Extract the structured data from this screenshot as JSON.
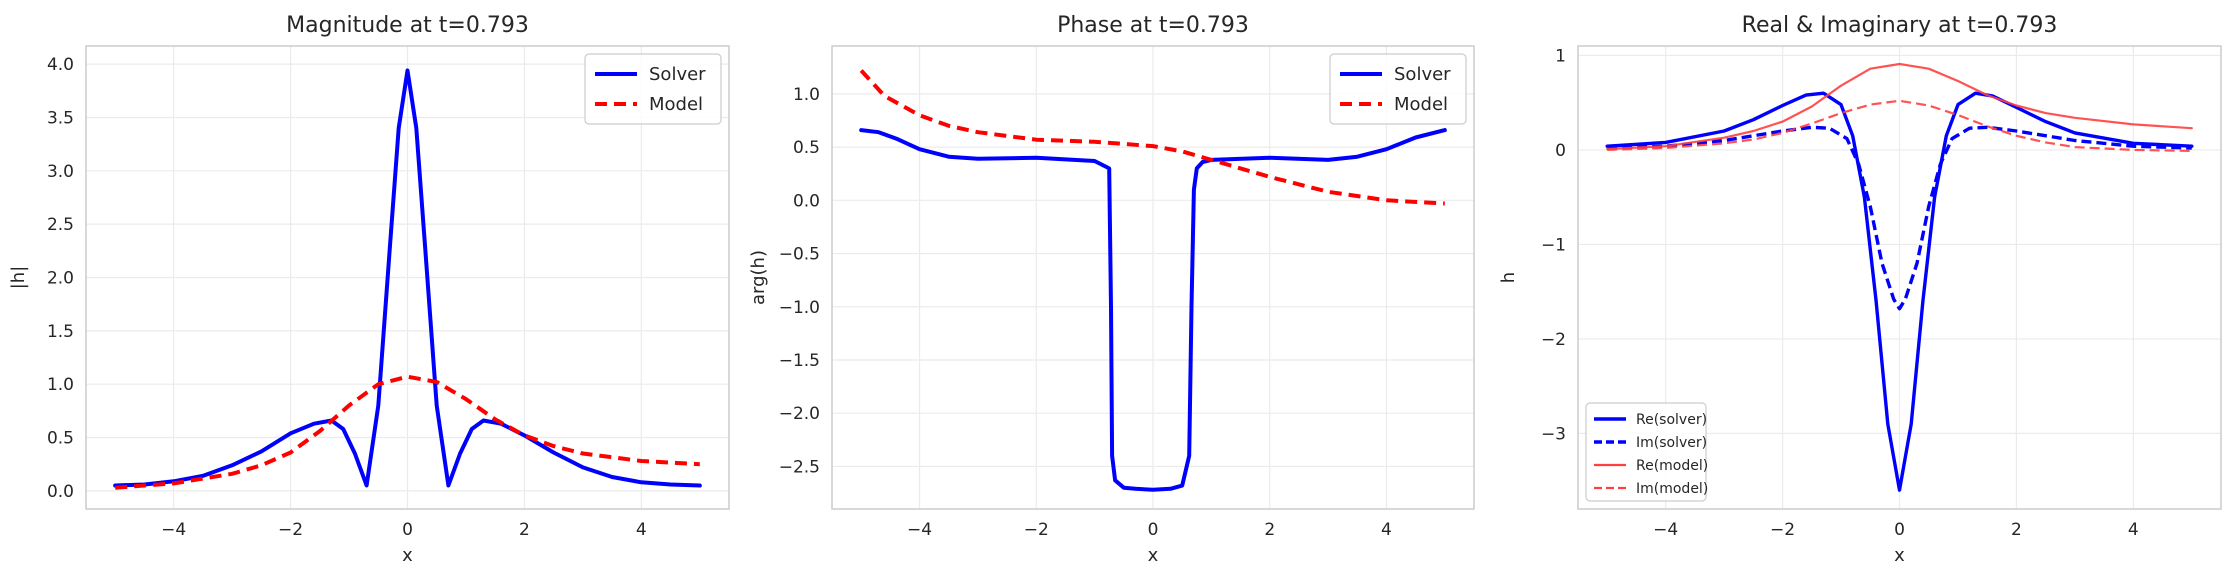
{
  "chart_data": [
    {
      "type": "line",
      "title": "Magnitude at t=0.793",
      "xlabel": "x",
      "ylabel": "|h|",
      "xlim": [
        -5.5,
        5.5
      ],
      "ylim": [
        -0.17,
        4.17
      ],
      "xticks": [
        -4,
        -2,
        0,
        2,
        4
      ],
      "xtick_labels": [
        "−4",
        "−2",
        "0",
        "2",
        "4"
      ],
      "yticks": [
        0.0,
        0.5,
        1.0,
        1.5,
        2.0,
        2.5,
        3.0,
        3.5,
        4.0
      ],
      "ytick_labels": [
        "0.0",
        "0.5",
        "1.0",
        "1.5",
        "2.0",
        "2.5",
        "3.0",
        "3.5",
        "4.0"
      ],
      "grid": true,
      "legend": "upper right",
      "series": [
        {
          "name": "Solver",
          "color": "#0000ff",
          "style": "solid",
          "x": [
            -5.0,
            -4.5,
            -4.0,
            -3.5,
            -3.0,
            -2.5,
            -2.0,
            -1.6,
            -1.3,
            -1.1,
            -0.9,
            -0.7,
            -0.5,
            -0.3,
            -0.15,
            0.0,
            0.15,
            0.3,
            0.5,
            0.7,
            0.9,
            1.1,
            1.3,
            1.6,
            2.0,
            2.5,
            3.0,
            3.5,
            4.0,
            4.5,
            5.0
          ],
          "y": [
            0.05,
            0.06,
            0.09,
            0.14,
            0.24,
            0.37,
            0.54,
            0.63,
            0.66,
            0.58,
            0.35,
            0.05,
            0.8,
            2.3,
            3.4,
            3.94,
            3.4,
            2.3,
            0.8,
            0.05,
            0.35,
            0.58,
            0.66,
            0.63,
            0.52,
            0.36,
            0.22,
            0.13,
            0.08,
            0.06,
            0.05
          ]
        },
        {
          "name": "Model",
          "color": "#ff0000",
          "style": "dashed",
          "x": [
            -5.0,
            -4.0,
            -3.0,
            -2.5,
            -2.0,
            -1.5,
            -1.0,
            -0.5,
            0.0,
            0.5,
            1.0,
            1.5,
            2.0,
            2.5,
            3.0,
            4.0,
            5.0
          ],
          "y": [
            0.03,
            0.07,
            0.16,
            0.24,
            0.36,
            0.56,
            0.8,
            1.0,
            1.07,
            1.02,
            0.86,
            0.67,
            0.52,
            0.42,
            0.35,
            0.28,
            0.25
          ]
        }
      ]
    },
    {
      "type": "line",
      "title": "Phase at t=0.793",
      "xlabel": "x",
      "ylabel": "arg(h)",
      "xlim": [
        -5.5,
        5.5
      ],
      "ylim": [
        -2.9,
        1.45
      ],
      "xticks": [
        -4,
        -2,
        0,
        2,
        4
      ],
      "xtick_labels": [
        "−4",
        "−2",
        "0",
        "2",
        "4"
      ],
      "yticks": [
        -2.5,
        -2.0,
        -1.5,
        -1.0,
        -0.5,
        0.0,
        0.5,
        1.0
      ],
      "ytick_labels": [
        "−2.5",
        "−2.0",
        "−1.5",
        "−1.0",
        "−0.5",
        "0.0",
        "0.5",
        "1.0"
      ],
      "grid": true,
      "legend": "upper right",
      "series": [
        {
          "name": "Solver",
          "color": "#0000ff",
          "style": "solid",
          "x": [
            -5.0,
            -4.7,
            -4.4,
            -4.0,
            -3.5,
            -3.0,
            -2.0,
            -1.0,
            -0.75,
            -0.72,
            -0.7,
            -0.65,
            -0.5,
            -0.3,
            0.0,
            0.3,
            0.5,
            0.62,
            0.66,
            0.7,
            0.75,
            0.85,
            1.0,
            2.0,
            3.0,
            3.5,
            4.0,
            4.5,
            5.0
          ],
          "y": [
            0.66,
            0.64,
            0.58,
            0.48,
            0.41,
            0.39,
            0.4,
            0.37,
            0.3,
            -1.0,
            -2.4,
            -2.63,
            -2.7,
            -2.71,
            -2.72,
            -2.71,
            -2.68,
            -2.4,
            -1.0,
            0.1,
            0.3,
            0.36,
            0.38,
            0.4,
            0.38,
            0.41,
            0.48,
            0.59,
            0.66
          ]
        },
        {
          "name": "Model",
          "color": "#ff0000",
          "style": "dashed",
          "x": [
            -5.0,
            -4.6,
            -4.0,
            -3.5,
            -3.0,
            -2.0,
            -1.0,
            0.0,
            0.5,
            1.0,
            2.0,
            3.0,
            4.0,
            5.0
          ],
          "y": [
            1.22,
            0.98,
            0.8,
            0.7,
            0.64,
            0.57,
            0.55,
            0.51,
            0.46,
            0.38,
            0.22,
            0.08,
            0.0,
            -0.03
          ]
        }
      ]
    },
    {
      "type": "line",
      "title": "Real & Imaginary at t=0.793",
      "xlabel": "x",
      "ylabel": "h",
      "xlim": [
        -5.5,
        5.5
      ],
      "ylim": [
        -3.8,
        1.1
      ],
      "xticks": [
        -4,
        -2,
        0,
        2,
        4
      ],
      "xtick_labels": [
        "−4",
        "−2",
        "0",
        "2",
        "4"
      ],
      "yticks": [
        -3,
        -2,
        -1,
        0,
        1
      ],
      "ytick_labels": [
        "−3",
        "−2",
        "−1",
        "0",
        "1"
      ],
      "grid": true,
      "legend": "lower left",
      "series": [
        {
          "name": "Re(solver)",
          "color": "#0000ff",
          "style": "solid",
          "width": 3.4,
          "x": [
            -5.0,
            -4.0,
            -3.0,
            -2.5,
            -2.0,
            -1.6,
            -1.3,
            -1.0,
            -0.8,
            -0.6,
            -0.4,
            -0.2,
            0.0,
            0.2,
            0.4,
            0.6,
            0.8,
            1.0,
            1.3,
            1.6,
            2.0,
            2.5,
            3.0,
            4.0,
            5.0
          ],
          "y": [
            0.04,
            0.08,
            0.2,
            0.32,
            0.47,
            0.58,
            0.6,
            0.48,
            0.15,
            -0.5,
            -1.6,
            -2.9,
            -3.6,
            -2.9,
            -1.6,
            -0.5,
            0.15,
            0.48,
            0.6,
            0.57,
            0.45,
            0.3,
            0.18,
            0.07,
            0.04
          ]
        },
        {
          "name": "Im(solver)",
          "color": "#0000ff",
          "style": "dashed",
          "width": 3.4,
          "x": [
            -5.0,
            -4.0,
            -3.0,
            -2.0,
            -1.5,
            -1.2,
            -0.9,
            -0.7,
            -0.5,
            -0.3,
            -0.1,
            0.0,
            0.1,
            0.3,
            0.5,
            0.7,
            0.9,
            1.2,
            1.5,
            2.0,
            3.0,
            4.0,
            5.0
          ],
          "y": [
            0.02,
            0.04,
            0.1,
            0.2,
            0.24,
            0.23,
            0.12,
            -0.15,
            -0.6,
            -1.2,
            -1.58,
            -1.68,
            -1.58,
            -1.2,
            -0.6,
            -0.15,
            0.12,
            0.23,
            0.24,
            0.2,
            0.1,
            0.04,
            0.02
          ]
        },
        {
          "name": "Re(model)",
          "color": "#ff4040",
          "style": "solid",
          "width": 2.2,
          "x": [
            -5.0,
            -4.0,
            -3.0,
            -2.5,
            -2.0,
            -1.5,
            -1.0,
            -0.5,
            0.0,
            0.5,
            1.0,
            1.5,
            2.0,
            2.5,
            3.0,
            4.0,
            5.0
          ],
          "y": [
            0.01,
            0.04,
            0.13,
            0.2,
            0.3,
            0.46,
            0.68,
            0.86,
            0.91,
            0.86,
            0.73,
            0.58,
            0.47,
            0.39,
            0.34,
            0.27,
            0.23
          ]
        },
        {
          "name": "Im(model)",
          "color": "#ff4040",
          "style": "dashed",
          "width": 2.2,
          "x": [
            -5.0,
            -4.0,
            -3.0,
            -2.5,
            -2.0,
            -1.5,
            -1.0,
            -0.5,
            0.0,
            0.5,
            1.0,
            1.5,
            2.0,
            2.5,
            3.0,
            4.0,
            5.0
          ],
          "y": [
            0.0,
            0.02,
            0.07,
            0.11,
            0.18,
            0.28,
            0.39,
            0.48,
            0.52,
            0.47,
            0.37,
            0.25,
            0.15,
            0.08,
            0.03,
            0.0,
            -0.01
          ]
        }
      ]
    }
  ]
}
